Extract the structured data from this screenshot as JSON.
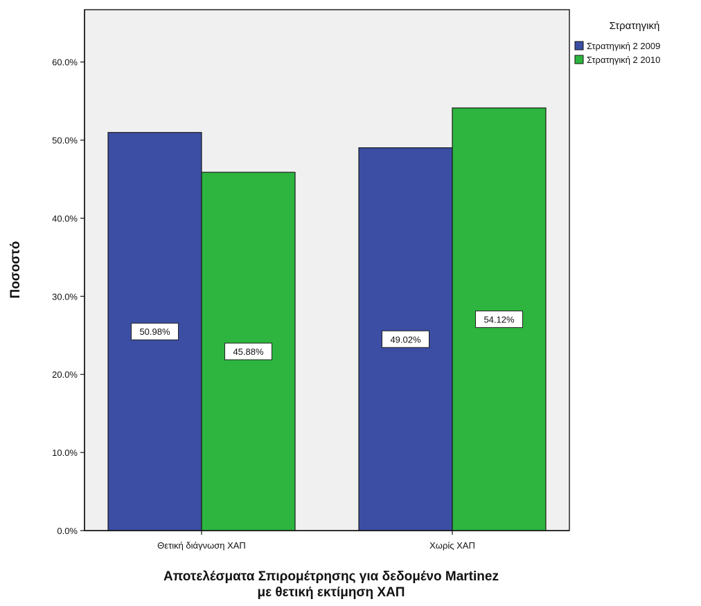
{
  "chart_data": {
    "type": "bar",
    "categories": [
      "Θετική διάγνωση ΧΑΠ",
      "Χωρίς ΧΑΠ"
    ],
    "series": [
      {
        "name": "Στρατηγική 2 2009",
        "values": [
          50.98,
          49.02
        ],
        "labels": [
          "50.98%",
          "49.02%"
        ],
        "color": "#3b4ea3"
      },
      {
        "name": "Στρατηγική 2 2010",
        "values": [
          45.88,
          54.12
        ],
        "labels": [
          "45.88%",
          "54.12%"
        ],
        "color": "#2db53f"
      }
    ],
    "xlabel_line1": "Αποτελέσματα Σπιρομέτρησης για δεδομένο Martinez",
    "xlabel_line2": "με θετική εκτίμηση ΧΑΠ",
    "ylabel": "Ποσοστό",
    "ylim": [
      0,
      66.7
    ],
    "yticks": [
      0,
      10,
      20,
      30,
      40,
      50,
      60
    ],
    "ytick_labels": [
      "0.0%",
      "10.0%",
      "20.0%",
      "30.0%",
      "40.0%",
      "50.0%",
      "60.0%"
    ],
    "legend": {
      "title": "Στρατηγική",
      "position": "top-right"
    },
    "grid": false,
    "plot_background": "#f0f0f0"
  }
}
